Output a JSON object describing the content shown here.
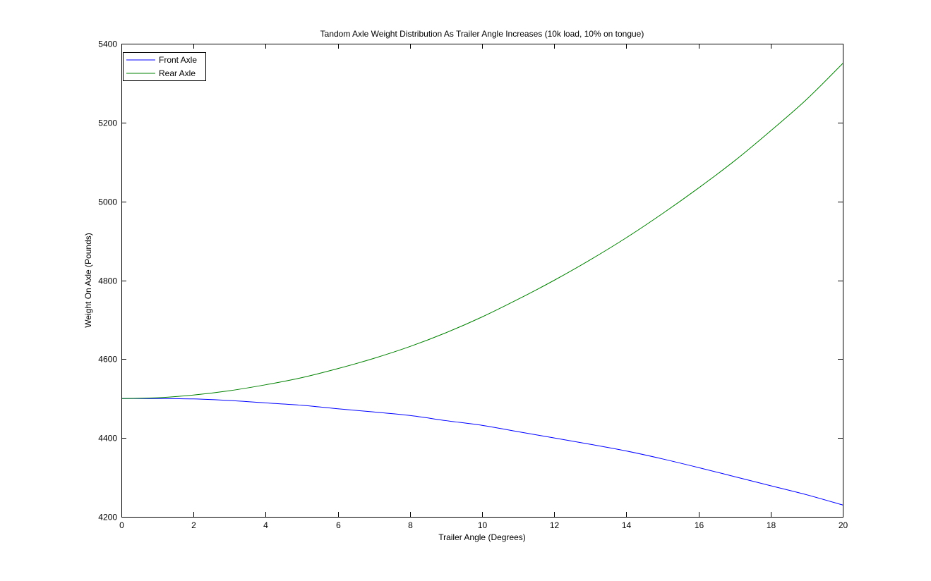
{
  "chart_data": {
    "type": "line",
    "title": "Tandom Axle Weight Distribution As Trailer Angle Increases (10k load, 10% on tongue)",
    "xlabel": "Trailer Angle (Degrees)",
    "ylabel": "Weight On Axle (Pounds)",
    "xlim": [
      0,
      20
    ],
    "ylim": [
      4200,
      5400
    ],
    "xticks": [
      0,
      2,
      4,
      6,
      8,
      10,
      12,
      14,
      16,
      18,
      20
    ],
    "yticks": [
      4200,
      4400,
      4600,
      4800,
      5000,
      5200,
      5400
    ],
    "grid": false,
    "legend_position": "top-left",
    "x": [
      0,
      1,
      2,
      3,
      4,
      5,
      6,
      7,
      8,
      9,
      10,
      11,
      12,
      13,
      14,
      15,
      16,
      17,
      18,
      19,
      20
    ],
    "series": [
      {
        "name": "Front Axle",
        "color": "#0000ff",
        "values": [
          4500,
          4500,
          4499,
          4495,
          4489,
          4483,
          4474,
          4466,
          4457,
          4444,
          4432,
          4416,
          4400,
          4384,
          4367,
          4347,
          4325,
          4302,
          4279,
          4256,
          4230
        ]
      },
      {
        "name": "Rear Axle",
        "color": "#008000",
        "values": [
          4500,
          4502,
          4509,
          4520,
          4535,
          4553,
          4576,
          4602,
          4632,
          4667,
          4707,
          4752,
          4800,
          4852,
          4908,
          4969,
          5034,
          5103,
          5179,
          5259,
          5350
        ]
      }
    ]
  }
}
